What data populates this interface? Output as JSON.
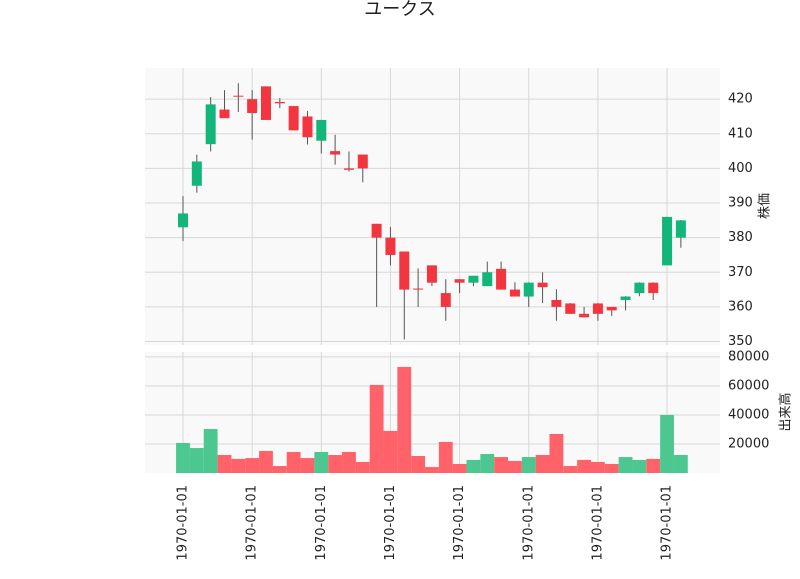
{
  "chart_data": [
    {
      "type": "candlestick",
      "title": "ユークス",
      "ylabel": "株価",
      "open": [
        383,
        395,
        407,
        417,
        421,
        420,
        423.7,
        419.2,
        418,
        415,
        408,
        405,
        400,
        404,
        384,
        380,
        376,
        365.3,
        372,
        364,
        368,
        367,
        366,
        371,
        365,
        363,
        367,
        362,
        361,
        358,
        361,
        360,
        362,
        364,
        367,
        372,
        380
      ],
      "high": [
        392,
        404,
        420.6,
        422.6,
        424.6,
        422.6,
        423.7,
        420.3,
        418,
        416.6,
        414,
        409.7,
        404.9,
        404,
        384,
        383.1,
        376,
        371.1,
        372,
        368,
        368,
        369,
        373.1,
        373.1,
        367.1,
        367.1,
        370,
        365.1,
        361.1,
        360,
        361.1,
        360,
        363.1,
        367.1,
        367.1,
        386,
        385.1
      ],
      "low": [
        379,
        393,
        404.9,
        414.6,
        416.3,
        408.3,
        414,
        417.4,
        411,
        406.9,
        404.3,
        401.1,
        399.1,
        396,
        360,
        372,
        350.6,
        360,
        366,
        356,
        364,
        366,
        366,
        365,
        363,
        360,
        361.1,
        356,
        358,
        356.9,
        356,
        357.4,
        359,
        363.1,
        362,
        372,
        377.1
      ],
      "close": [
        387,
        402,
        418.5,
        414.5,
        420.8,
        416,
        414,
        418.8,
        411,
        409,
        414,
        404,
        399.6,
        400,
        380,
        375,
        365,
        365,
        367,
        360,
        367,
        369,
        370,
        365,
        363,
        367,
        365.7,
        360,
        358,
        357,
        358,
        359,
        363,
        367,
        364,
        386,
        385
      ],
      "up_color": "#12b57a",
      "down_color": "#f2353f",
      "ylim": [
        349,
        429
      ],
      "yticks": [
        350,
        360,
        370,
        380,
        390,
        400,
        410,
        420
      ],
      "grid": true
    },
    {
      "type": "bar",
      "ylabel": "出来高",
      "categories": [
        "1970-01-01",
        null,
        null,
        null,
        null,
        "1970-01-01",
        null,
        null,
        null,
        null,
        "1970-01-01",
        null,
        null,
        null,
        null,
        "1970-01-01",
        null,
        null,
        null,
        null,
        "1970-01-01",
        null,
        null,
        null,
        null,
        "1970-01-01",
        null,
        null,
        null,
        null,
        "1970-01-01",
        null,
        null,
        null,
        null,
        "1970-01-01",
        null
      ],
      "values": [
        20700,
        17200,
        30300,
        12400,
        9700,
        10300,
        15200,
        4800,
        14500,
        10300,
        14500,
        12400,
        14500,
        7600,
        60700,
        29000,
        73100,
        11700,
        4100,
        21400,
        6200,
        9000,
        13100,
        11000,
        8300,
        11000,
        12400,
        26900,
        4800,
        9000,
        7600,
        6200,
        11000,
        9000,
        9700,
        40000,
        12400
      ],
      "up_color": "#4cc790",
      "down_color": "#ff6369",
      "ylim": [
        0,
        83400
      ],
      "yticks": [
        20000,
        40000,
        60000,
        80000
      ],
      "grid": true
    }
  ]
}
